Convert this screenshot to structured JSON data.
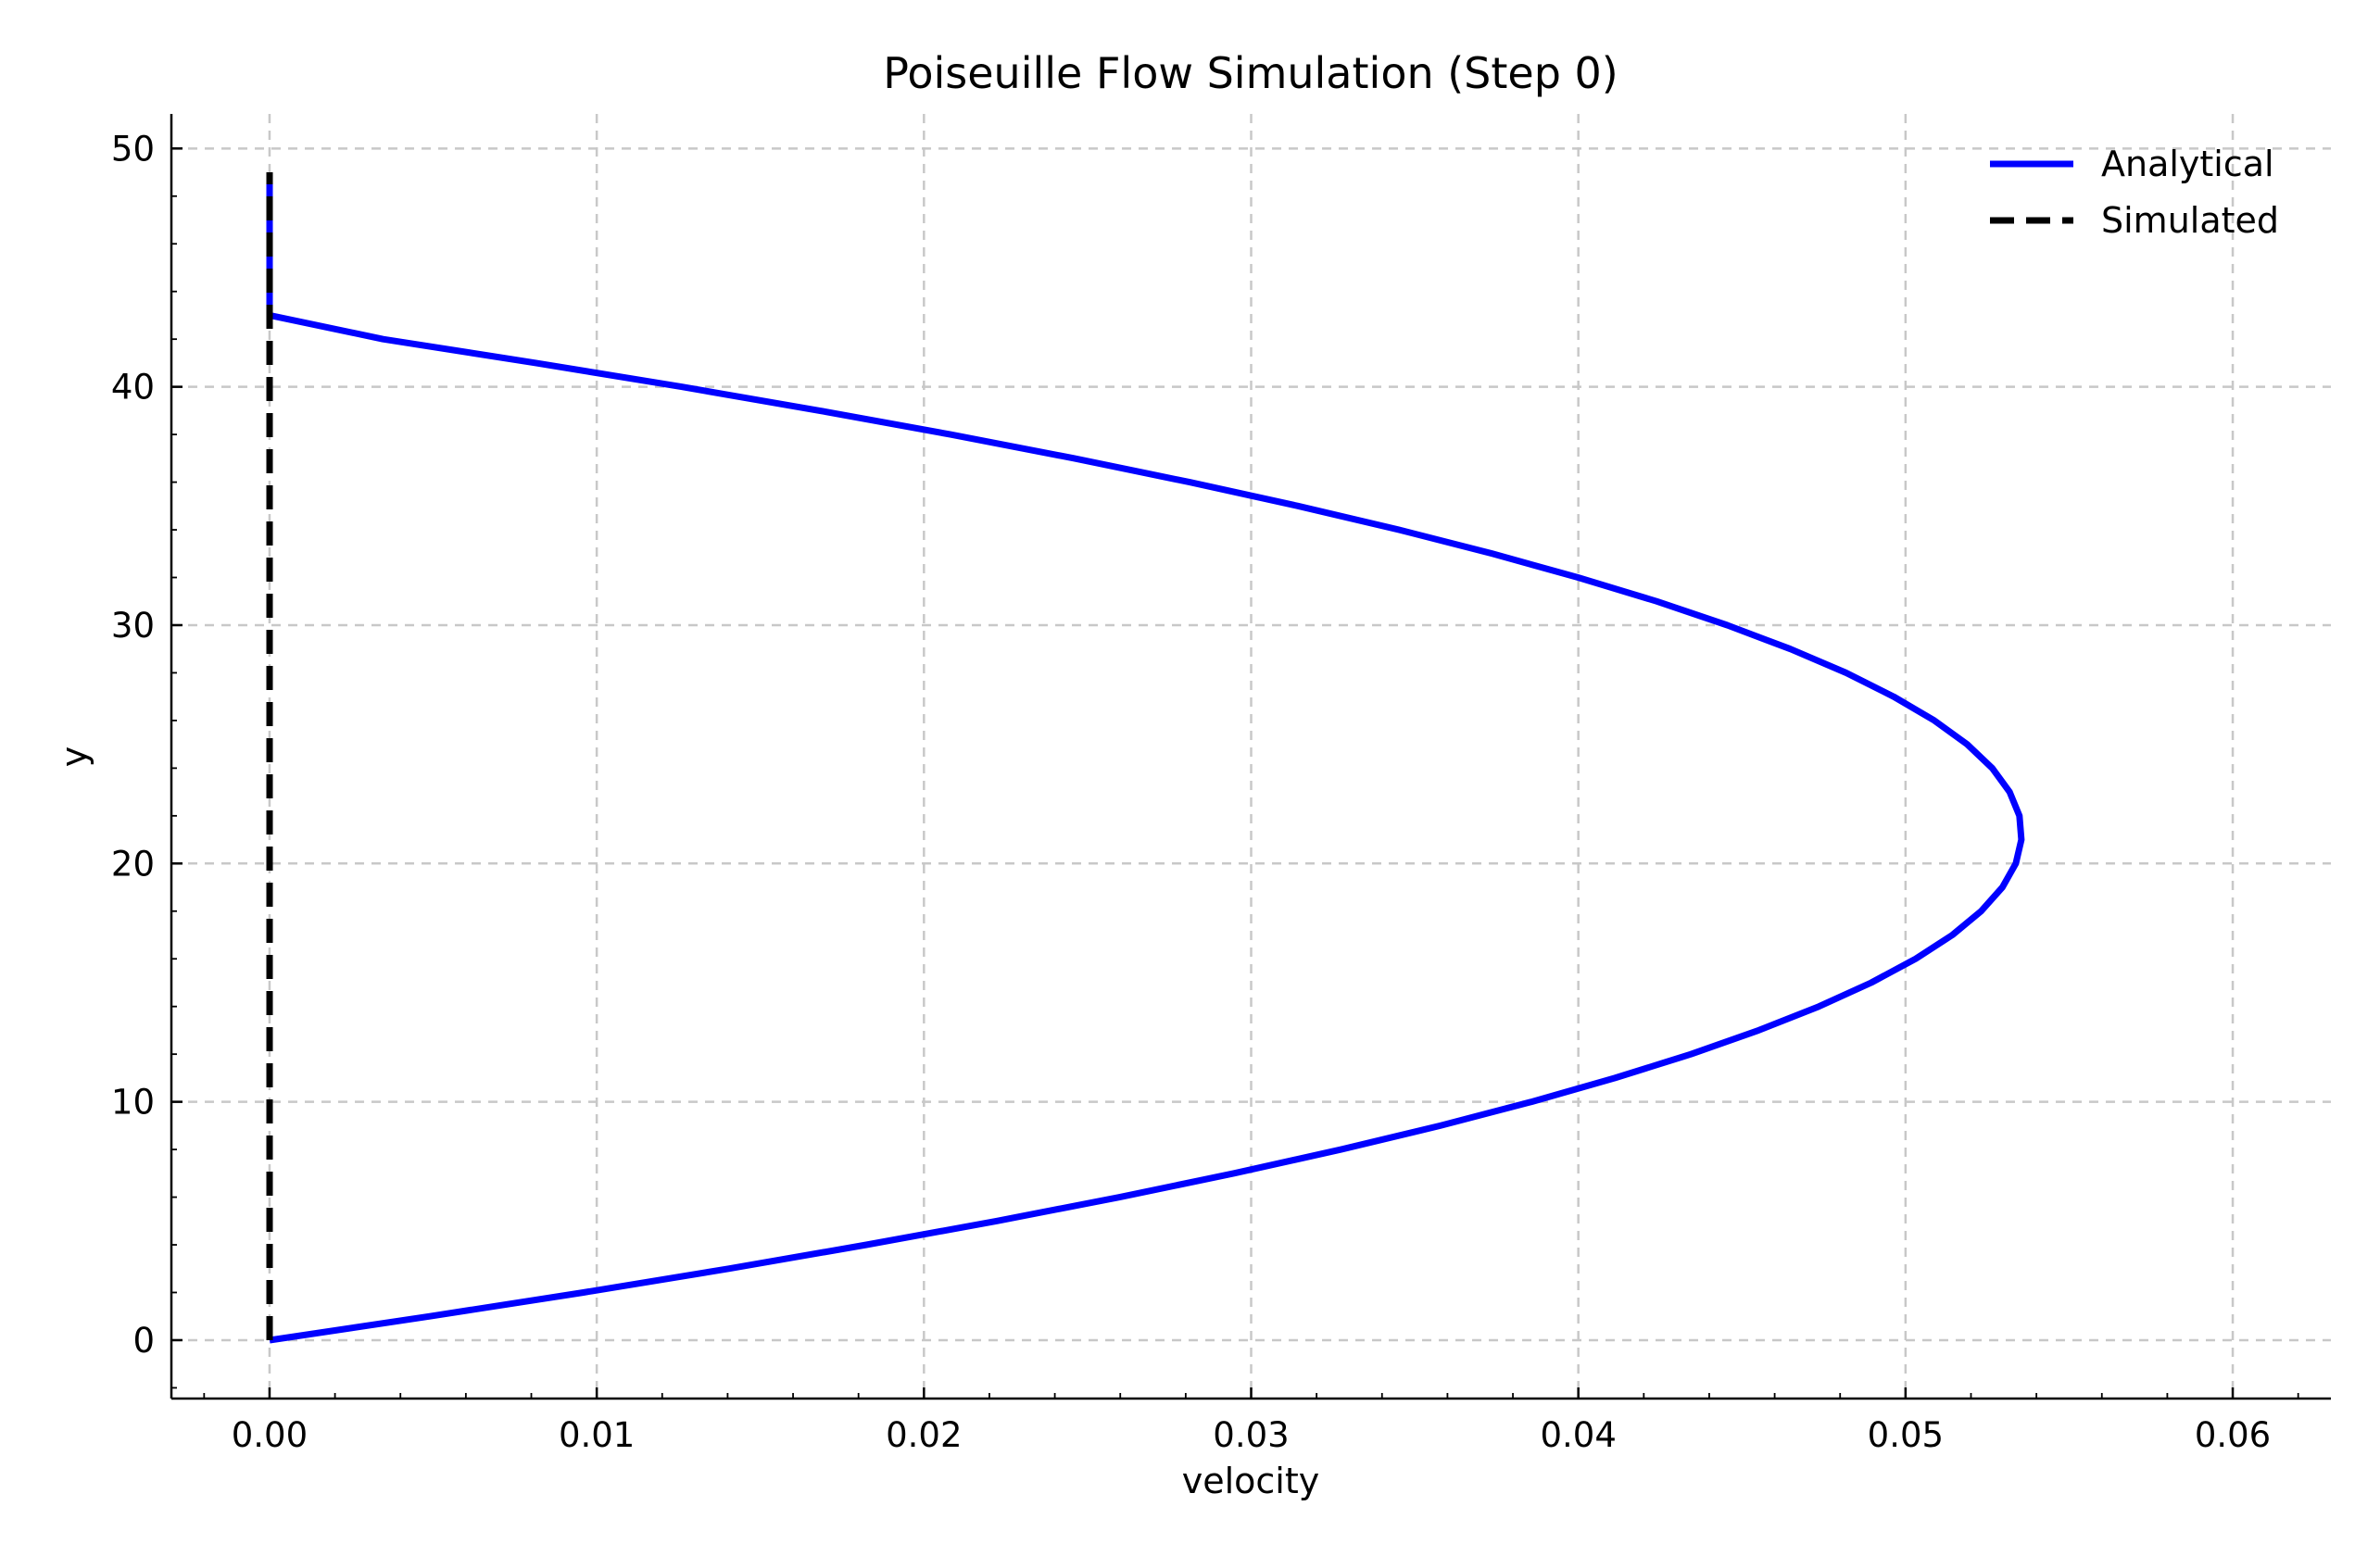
{
  "chart_data": {
    "type": "line",
    "title": "Poiseuille Flow Simulation (Step 0)",
    "xlabel": "velocity",
    "ylabel": "y",
    "xlim": [
      -0.003,
      0.063
    ],
    "ylim": [
      -2.45,
      51.45
    ],
    "xticks": [
      0.0,
      0.01,
      0.02,
      0.03,
      0.04,
      0.05,
      0.06
    ],
    "xtick_labels": [
      "0.00",
      "0.01",
      "0.02",
      "0.03",
      "0.04",
      "0.05",
      "0.06"
    ],
    "yticks": [
      0,
      10,
      20,
      30,
      40,
      50
    ],
    "ytick_labels": [
      "0",
      "10",
      "20",
      "30",
      "40",
      "50"
    ],
    "grid": true,
    "legend_position": "top-right",
    "series": [
      {
        "name": "Analytical",
        "color": "#0000ff",
        "style": "solid",
        "y": [
          0,
          1,
          2,
          3,
          4,
          5,
          6,
          7,
          8,
          9,
          10,
          11,
          12,
          13,
          14,
          15,
          16,
          17,
          18,
          19,
          20,
          21,
          22,
          23,
          24,
          25,
          26,
          27,
          28,
          29,
          30,
          31,
          32,
          33,
          34,
          35,
          36,
          37,
          38,
          39,
          40,
          41,
          42,
          43,
          44,
          45,
          46,
          47,
          48,
          49
        ],
        "x": [
          0.0,
          0.0049,
          0.00959,
          0.01403,
          0.01824,
          0.02223,
          0.02598,
          0.02948,
          0.03275,
          0.03578,
          0.03857,
          0.04112,
          0.04344,
          0.04551,
          0.04735,
          0.04895,
          0.05031,
          0.05143,
          0.05231,
          0.05296,
          0.05337,
          0.05354,
          0.05348,
          0.05318,
          0.05265,
          0.05188,
          0.05088,
          0.04964,
          0.04818,
          0.04648,
          0.04455,
          0.04239,
          0.03999,
          0.03737,
          0.03452,
          0.03143,
          0.02812,
          0.02458,
          0.02081,
          0.01681,
          0.01259,
          0.00814,
          0.00347,
          0.0,
          0.0,
          0.0,
          0.0,
          0.0,
          0.0,
          0.0
        ]
      },
      {
        "name": "Simulated",
        "color": "#000000",
        "style": "dashed",
        "y": [
          0,
          49
        ],
        "x": [
          0.0,
          0.0
        ]
      }
    ]
  }
}
